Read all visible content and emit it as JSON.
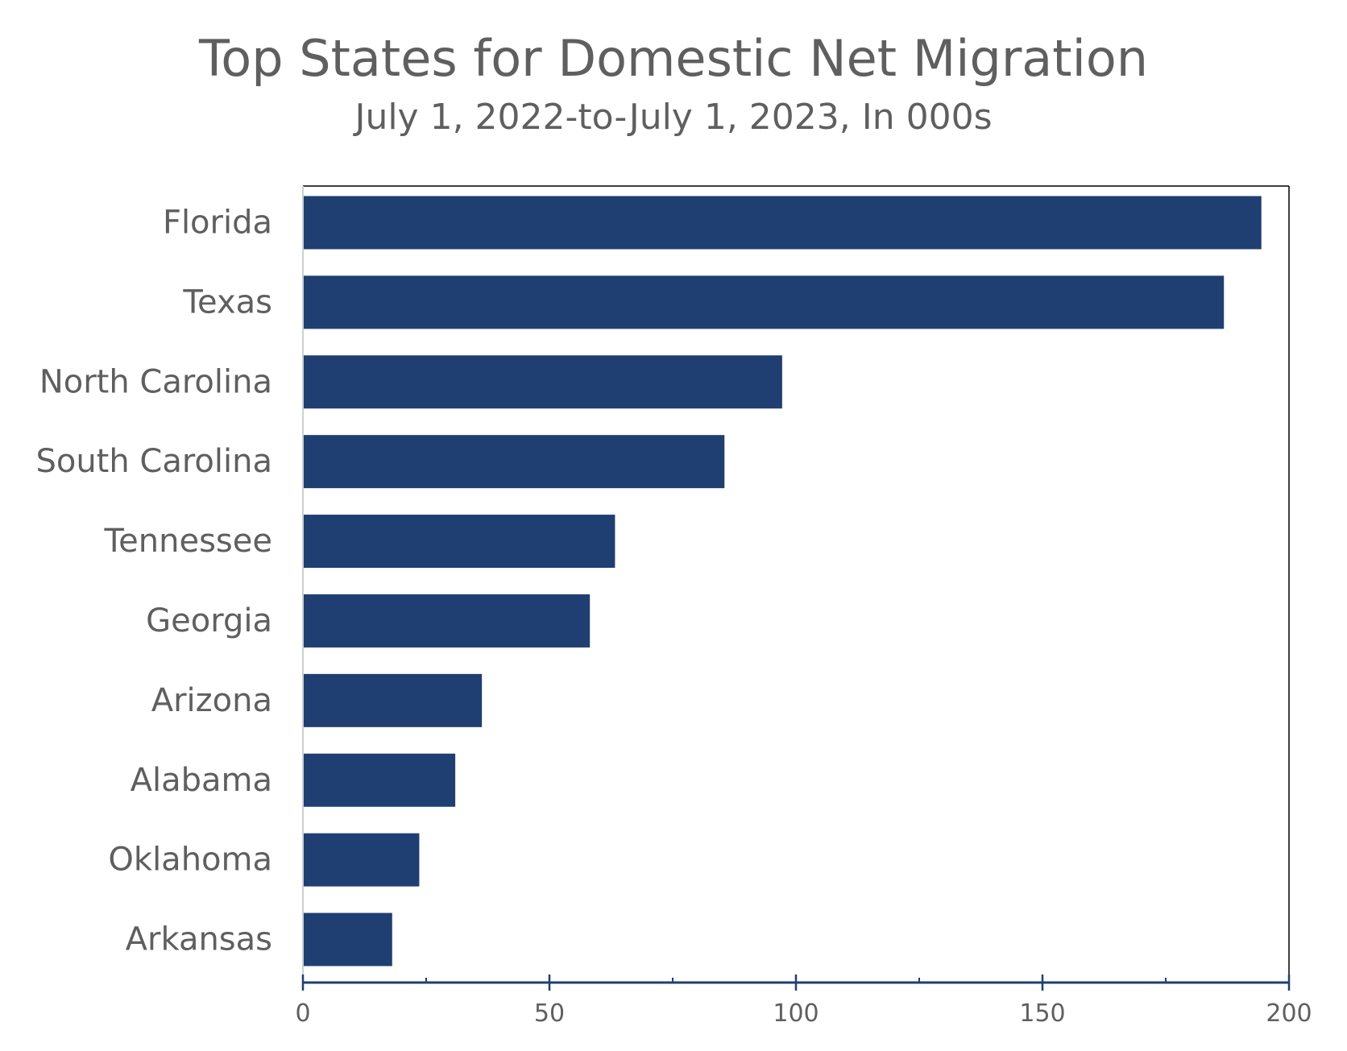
{
  "chart_data": {
    "type": "bar",
    "orientation": "horizontal",
    "title": "Top States for Domestic Net Migration",
    "subtitle": "July 1, 2022-to-July 1, 2023, In 000s",
    "categories": [
      "Florida",
      "Texas",
      "North Carolina",
      "South Carolina",
      "Tennessee",
      "Georgia",
      "Arizona",
      "Alabama",
      "Oklahoma",
      "Arkansas"
    ],
    "values": [
      194.4,
      186.8,
      97.2,
      85.5,
      63.3,
      58.2,
      36.3,
      30.9,
      23.6,
      18.1
    ],
    "xlim": [
      0,
      200
    ],
    "x_major_ticks": [
      0,
      50,
      100,
      150,
      200
    ],
    "x_minor_ticks": [
      25,
      75,
      125,
      175
    ],
    "x_tick_labels": [
      "0",
      "50",
      "100",
      "150",
      "200"
    ],
    "xlabel": "",
    "ylabel": "",
    "grid": false,
    "legend": "none",
    "colors": {
      "bar": "#1f3f73",
      "axis": "#1f3f73",
      "text": "#5f5f5f",
      "frame": "#000000"
    }
  }
}
